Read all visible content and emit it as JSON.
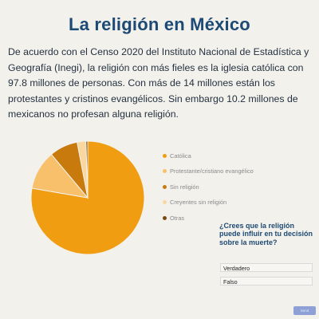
{
  "page": {
    "title": "La religión en México",
    "intro": "De acuerdo con el Censo 2020 del Instituto Nacional de Estadística y Geografía (Inegi), la religión con más fieles es la iglesia católica con 97.8 millones de personas. Con más de 14 millones están los protestantes y cristinos evangélicos. Sin embargo 10.2 millones de mexicanos no profesan alguna religión."
  },
  "chart_data": {
    "type": "pie",
    "categories": [
      "Católica",
      "Protestante/cristiano evangélico",
      "Sin religión",
      "Creyentes sin religión",
      "Otras"
    ],
    "values": [
      77.7,
      11.2,
      8.1,
      2.5,
      0.5
    ],
    "colors": [
      "#f09d11",
      "#f8c06a",
      "#c97a0c",
      "#fbd7a0",
      "#7a4a0e"
    ],
    "legend_position": "right"
  },
  "poll": {
    "question": "¿Crees que la religión puede influir en tu decisión sobre la muerte?",
    "options": [
      "Verdadero",
      "Falso"
    ],
    "submit_label": "Send"
  }
}
